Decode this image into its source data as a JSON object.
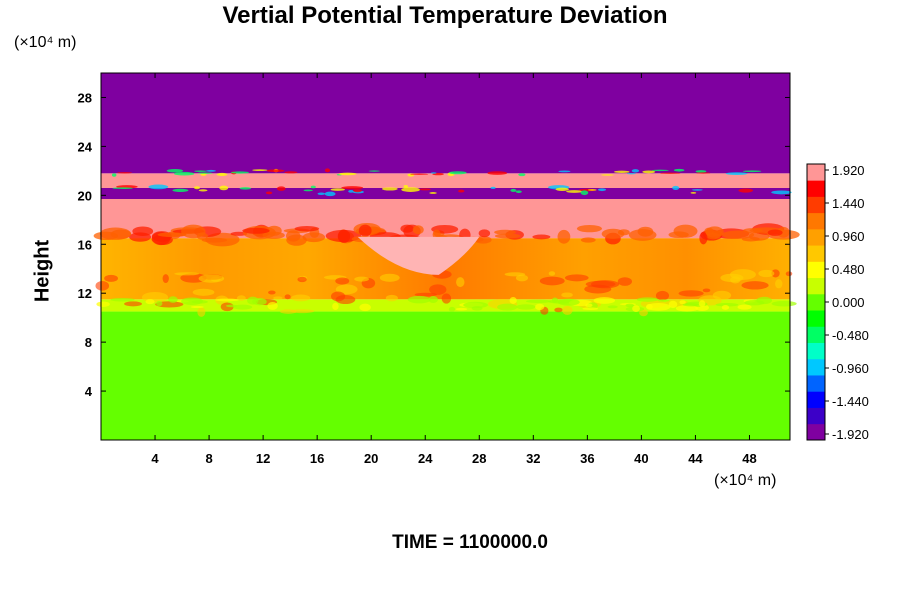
{
  "chart_data": {
    "type": "heatmap",
    "title": "Vertial Potential Temperature Deviation",
    "xlabel": "",
    "ylabel": "Height",
    "x_unit": "(×10⁴ m)",
    "y_unit": "(×10⁴ m)",
    "xlim": [
      0,
      51
    ],
    "ylim": [
      0,
      30
    ],
    "x_ticks": [
      4,
      8,
      12,
      16,
      20,
      24,
      28,
      32,
      36,
      40,
      44,
      48
    ],
    "y_ticks": [
      4,
      8,
      12,
      16,
      20,
      24,
      28
    ],
    "colorbar": {
      "min": -1.92,
      "max": 1.92,
      "labels": [
        "1.920",
        "1.440",
        "0.960",
        "0.480",
        "0.000",
        "-0.480",
        "-0.960",
        "-1.440",
        "-1.920"
      ],
      "colors": [
        "#7f00a0",
        "#3c00c8",
        "#0000ff",
        "#0064ff",
        "#00c8ff",
        "#00ffc8",
        "#00ff64",
        "#00ff00",
        "#64ff00",
        "#c8ff00",
        "#ffff00",
        "#ffc800",
        "#ffa000",
        "#ff7800",
        "#ff3c00",
        "#ff0000",
        "#ff9696"
      ]
    },
    "field_layers": [
      {
        "y_range": [
          0,
          10.5
        ],
        "value": 0.05,
        "description_color": "#00ff00"
      },
      {
        "y_range": [
          10.5,
          11.5
        ],
        "value": 0.3
      },
      {
        "y_range": [
          11.5,
          16.5
        ],
        "value": 1.0
      },
      {
        "y_range": [
          16.5,
          19.7
        ],
        "value": 1.92
      },
      {
        "y_range": [
          19.7,
          20.6
        ],
        "value": -1.92
      },
      {
        "y_range": [
          20.6,
          21.8
        ],
        "value": 1.92
      },
      {
        "y_range": [
          21.8,
          30
        ],
        "value": -1.92
      }
    ],
    "time_label": "TIME = 1100000.0"
  }
}
